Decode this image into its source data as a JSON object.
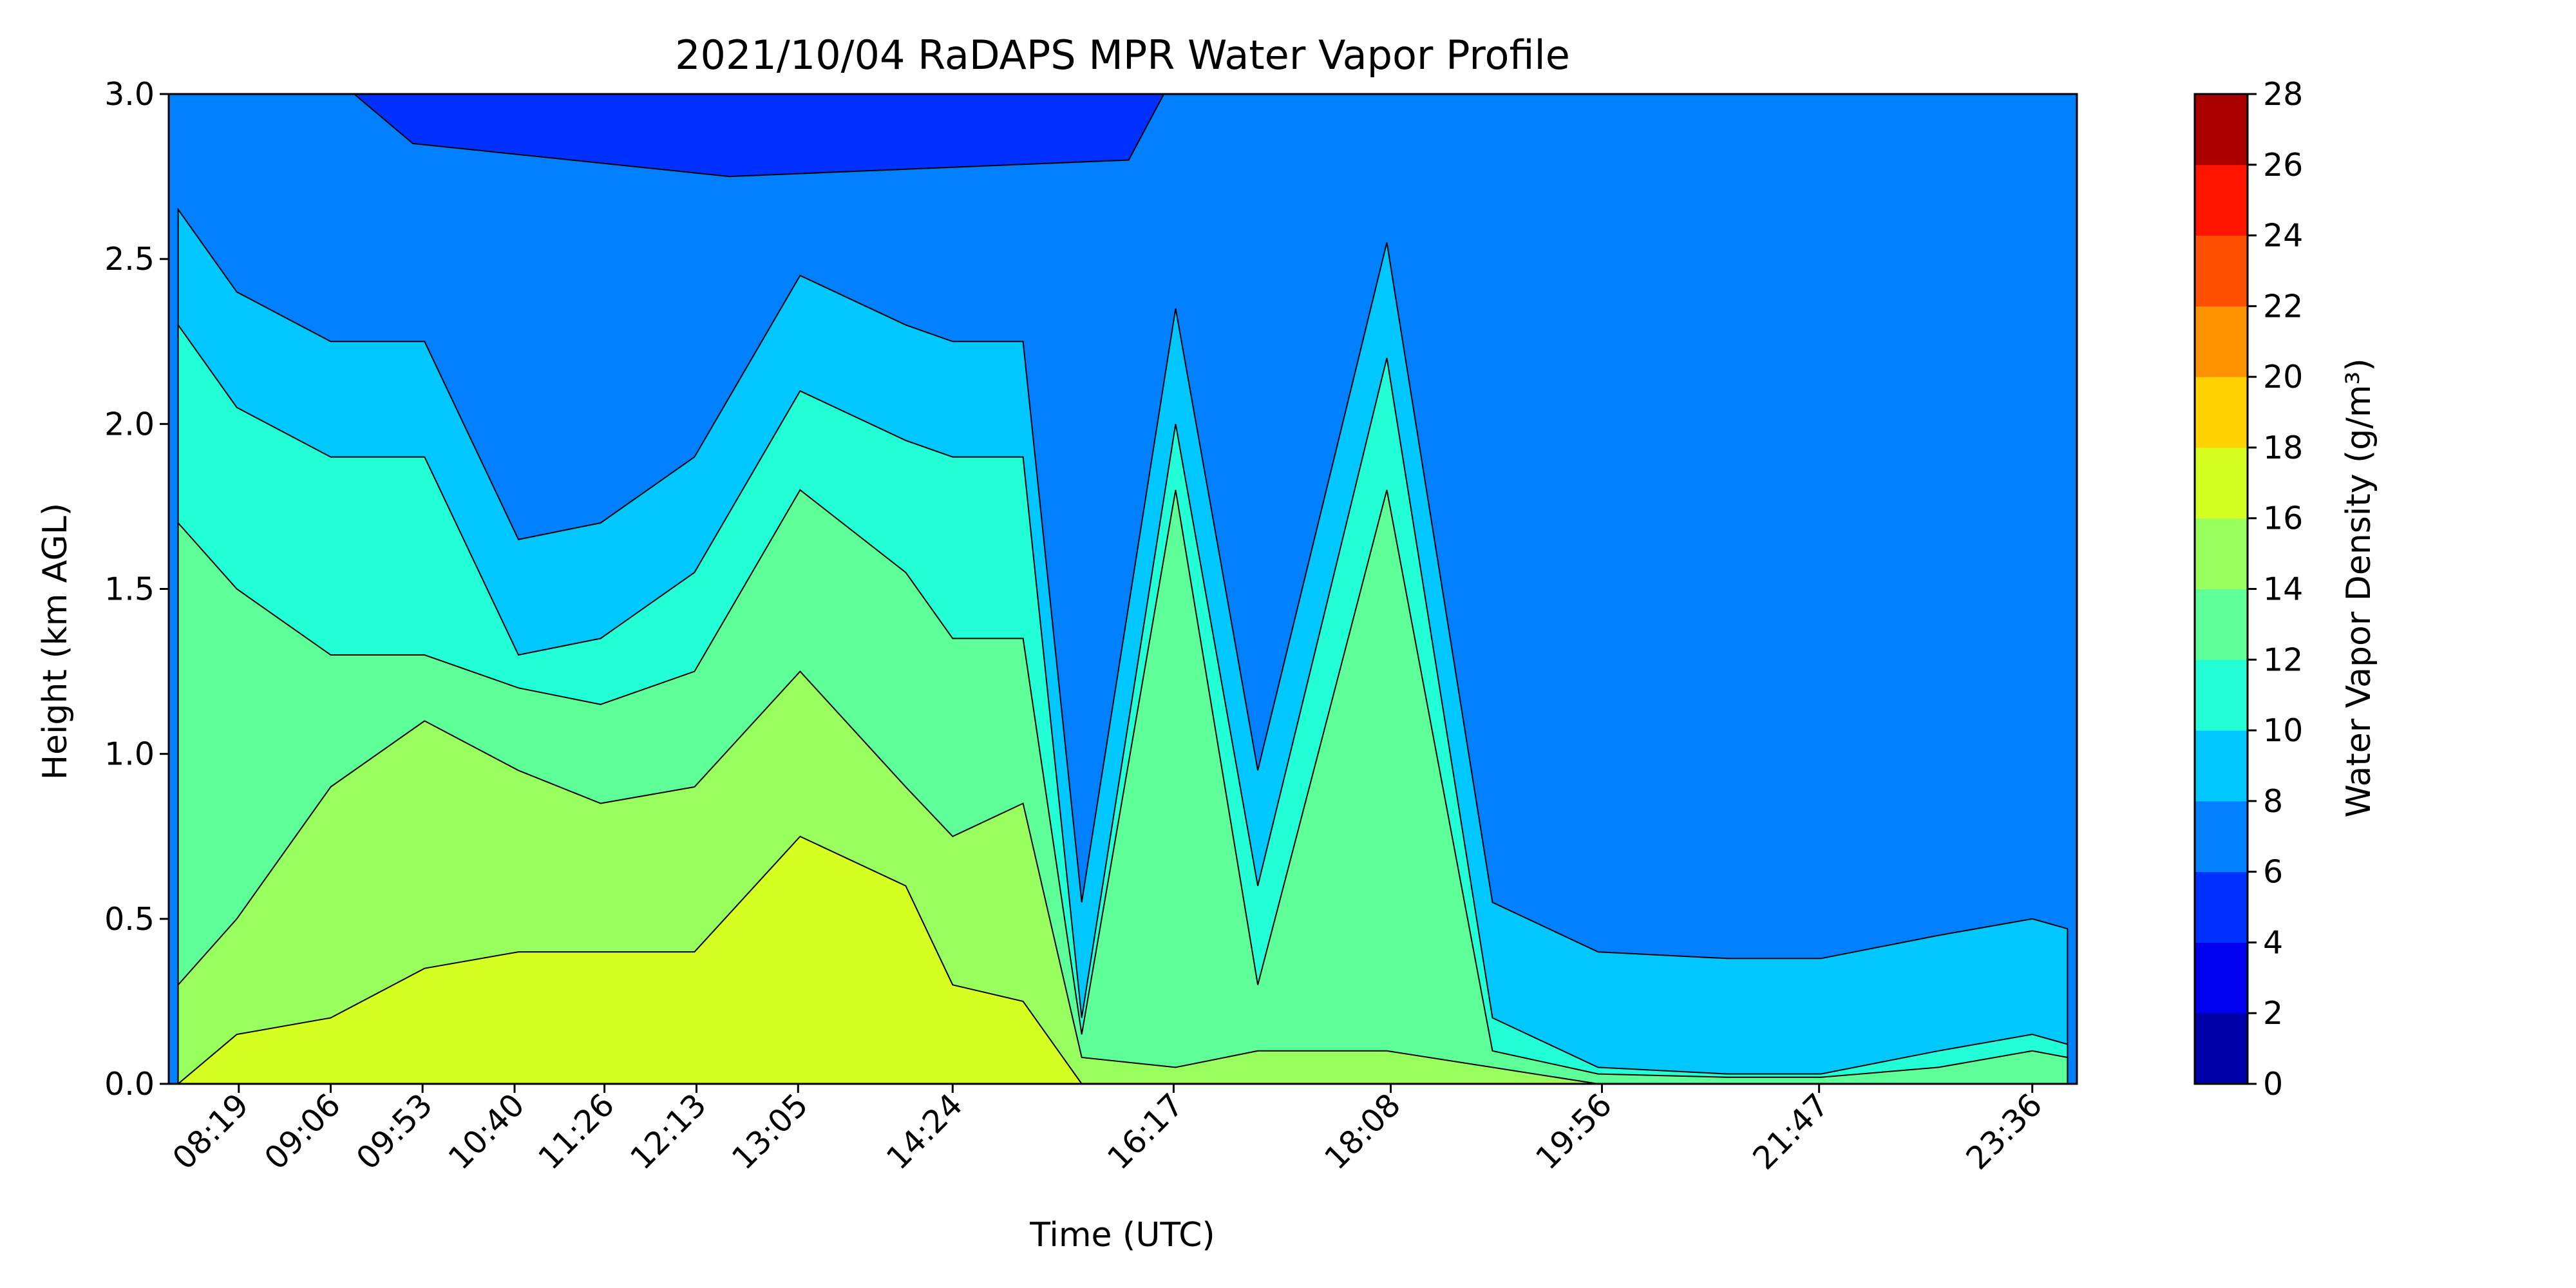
{
  "chart_data": {
    "type": "heatmap",
    "subtype": "filled-contour",
    "title": "2021/10/04 RaDAPS MPR Water Vapor Profile",
    "xlabel": "Time (UTC)",
    "ylabel": "Height (km AGL)",
    "x_tick_labels": [
      "08:19",
      "09:06",
      "09:53",
      "10:40",
      "11:26",
      "12:13",
      "13:05",
      "14:24",
      "16:17",
      "18:08",
      "19:56",
      "21:47",
      "23:36"
    ],
    "x_tick_hours": [
      8.317,
      9.1,
      9.883,
      10.667,
      11.433,
      12.217,
      13.083,
      14.4,
      16.283,
      18.133,
      19.933,
      21.783,
      23.6
    ],
    "xlim_hours": [
      7.72,
      23.98
    ],
    "x_tick_rotation": 45,
    "ylim": [
      0,
      3.0
    ],
    "y_ticks": [
      0.0,
      0.5,
      1.0,
      1.5,
      2.0,
      2.5,
      3.0
    ],
    "y_tick_labels": [
      "0.0",
      "0.5",
      "1.0",
      "1.5",
      "2.0",
      "2.5",
      "3.0"
    ],
    "colorbar": {
      "label": "Water Vapor Density (g/m³)",
      "levels": [
        0,
        2,
        4,
        6,
        8,
        10,
        12,
        14,
        16,
        18,
        20,
        22,
        24,
        26,
        28
      ],
      "tick_labels": [
        "0",
        "2",
        "4",
        "6",
        "8",
        "10",
        "12",
        "14",
        "16",
        "18",
        "20",
        "22",
        "24",
        "26",
        "28"
      ],
      "colors": [
        "#0000a8",
        "#0000ee",
        "#0030ff",
        "#0080ff",
        "#00c8ff",
        "#22ffd6",
        "#5eff98",
        "#98ff5e",
        "#d6ff22",
        "#ffd200",
        "#ff9200",
        "#ff5000",
        "#ff1400",
        "#aa0000"
      ]
    },
    "time_height_profile": {
      "note_units": "time in UTC hours, height in km AGL",
      "times": [
        7.8,
        8.3,
        9.1,
        9.9,
        10.7,
        11.4,
        12.2,
        13.1,
        14.0,
        14.4,
        15.0,
        15.5,
        16.3,
        17.0,
        18.1,
        19.0,
        19.9,
        21.0,
        21.8,
        22.8,
        23.6,
        23.9
      ],
      "top_of_10_level_km": [
        2.3,
        2.05,
        1.9,
        1.9,
        1.3,
        1.35,
        1.55,
        2.1,
        1.95,
        1.9,
        1.9,
        0.2,
        2.0,
        0.6,
        2.2,
        0.2,
        0.05,
        0.03,
        0.03,
        0.1,
        0.15,
        0.12
      ],
      "top_of_12_level_km": [
        1.7,
        1.5,
        1.3,
        1.3,
        1.2,
        1.15,
        1.25,
        1.8,
        1.55,
        1.35,
        1.35,
        0.15,
        1.8,
        0.3,
        1.8,
        0.1,
        0.03,
        0.02,
        0.02,
        0.05,
        0.1,
        0.08
      ],
      "top_of_14_level_km": [
        0.3,
        0.5,
        0.9,
        1.1,
        0.95,
        0.85,
        0.9,
        1.25,
        0.9,
        0.75,
        0.85,
        0.08,
        0.05,
        0.1,
        0.1,
        0.05,
        0.0,
        0.0,
        0.0,
        0.0,
        0.0,
        0.0
      ],
      "top_of_16_level_km": [
        0.0,
        0.15,
        0.2,
        0.35,
        0.4,
        0.4,
        0.4,
        0.75,
        0.6,
        0.3,
        0.25,
        0.0,
        0.0,
        0.0,
        0.0,
        0.0,
        0.0,
        0.0,
        0.0,
        0.0,
        0.0,
        0.0
      ]
    },
    "grid": false,
    "legend": "colorbar-right"
  }
}
